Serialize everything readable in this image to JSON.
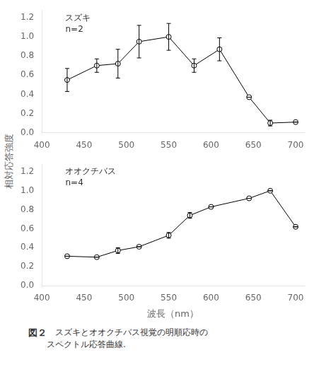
{
  "chart_data": [
    {
      "type": "line",
      "annotation": "スズキ\nn=2",
      "x": [
        430,
        465,
        490,
        515,
        550,
        580,
        610,
        645,
        670,
        700
      ],
      "series": [
        {
          "color": "black",
          "marker": "hollow_circle",
          "line_style": "solid",
          "values": [
            0.55,
            0.7,
            0.72,
            0.95,
            1.0,
            0.7,
            0.87,
            0.37,
            0.1,
            0.11
          ],
          "errors": [
            0.12,
            0.07,
            0.15,
            0.17,
            0.14,
            0.07,
            0.12,
            0.0,
            0.03,
            0.0
          ]
        }
      ],
      "xlim": [
        400,
        710
      ],
      "xticks": [
        400,
        450,
        500,
        550,
        600,
        650,
        700
      ],
      "ylim": [
        0,
        1.28
      ],
      "yticks": [
        {
          "value": 0,
          "label": "0.0"
        },
        0.2,
        0.4,
        0.6,
        0.8,
        {
          "value": 1.0,
          "label": "1.0"
        },
        1.2
      ],
      "grid": false,
      "legend": false
    },
    {
      "type": "line",
      "annotation": "オオクチバス\nn=4",
      "xlabel": "波長（nm）",
      "x": [
        430,
        465,
        490,
        515,
        550,
        575,
        600,
        645,
        670,
        700
      ],
      "series": [
        {
          "color": "black",
          "marker": "hollow_circle",
          "line_style": "solid",
          "values": [
            0.31,
            0.3,
            0.37,
            0.41,
            0.53,
            0.74,
            0.83,
            0.92,
            1.0,
            0.62
          ],
          "errors": [
            0.0,
            0.0,
            0.03,
            0.0,
            0.03,
            0.03,
            0.0,
            0.0,
            0.0,
            0.0
          ]
        }
      ],
      "xlim": [
        400,
        710
      ],
      "xticks": [
        400,
        450,
        500,
        550,
        600,
        650,
        700
      ],
      "ylim": [
        0,
        1.28
      ],
      "yticks": [
        {
          "value": 0,
          "label": "0.0"
        },
        0.2,
        0.4,
        0.6,
        0.8,
        {
          "value": 1.0,
          "label": "1.0"
        },
        1.2
      ],
      "grid": false,
      "legend": false
    }
  ],
  "ylabel": "相対応答強度",
  "caption": {
    "label": "図２",
    "text": "　スズキとオオクチバス視覚の明順応時の\nスペクトル応答曲線."
  }
}
